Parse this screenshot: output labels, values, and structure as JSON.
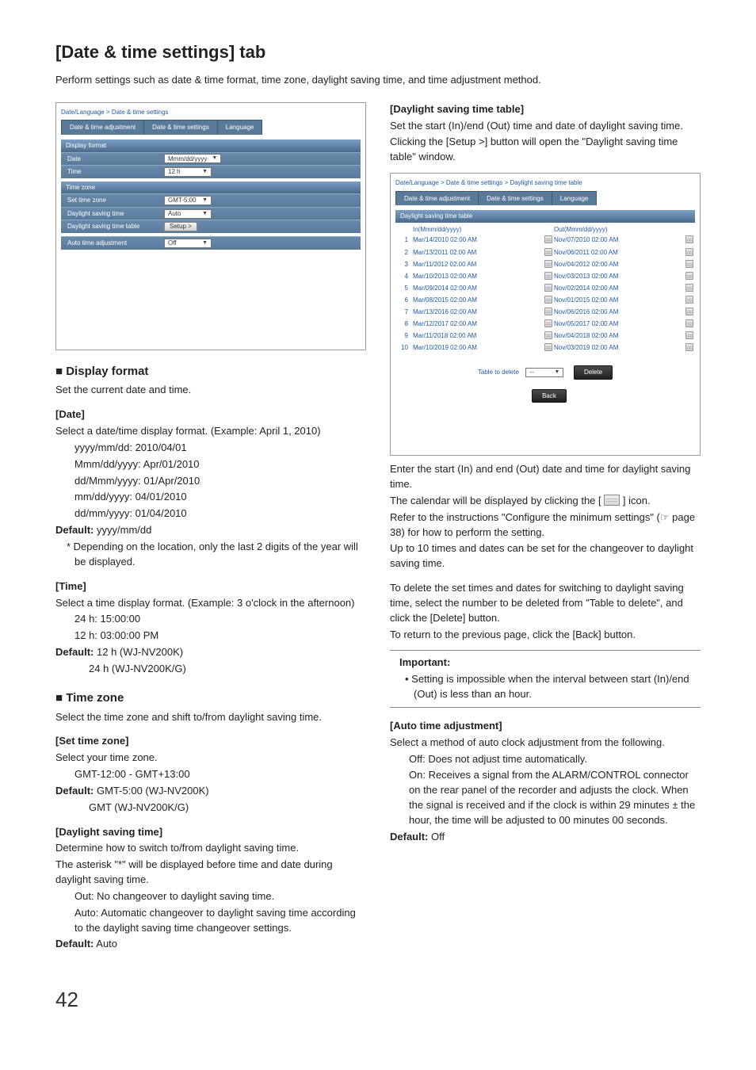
{
  "colors": {
    "accent": "#1e5aa8",
    "tab_bg": "#5a7a9a",
    "section_grad_top": "#7aa0c6",
    "section_grad_bottom": "#4a6a8a",
    "btn_dark_top": "#4a4a4a",
    "btn_dark_bottom": "#1f1f1f"
  },
  "page": {
    "title": "[Date & time settings] tab",
    "intro": "Perform settings such as date & time format, time zone, daylight saving time, and time adjustment method.",
    "number": "42"
  },
  "shot1": {
    "crumb": "Date/Language > Date & time settings",
    "tabs": [
      "Date & time adjustment",
      "Date & time settings",
      "Language"
    ],
    "sections": {
      "display_format": {
        "title": "Display format",
        "rows": [
          {
            "label": "Date",
            "value": "Mmm/dd/yyyy",
            "type": "dropdown"
          },
          {
            "label": "Time",
            "value": "12 h",
            "type": "dropdown"
          }
        ]
      },
      "time_zone": {
        "title": "Time zone",
        "rows": [
          {
            "label": "Set time zone",
            "value": "GMT-5:00",
            "type": "dropdown"
          },
          {
            "label": "Daylight saving time",
            "value": "Auto",
            "type": "dropdown"
          },
          {
            "label": "Daylight saving time table",
            "value": "Setup >",
            "type": "button"
          }
        ]
      },
      "auto": {
        "title": "",
        "rows": [
          {
            "label": "Auto time adjustment",
            "value": "Off",
            "type": "dropdown"
          }
        ]
      }
    }
  },
  "left": {
    "display_format": {
      "heading": "■ Display format",
      "sub": "Set the current date and time.",
      "date": {
        "h": "[Date]",
        "p": "Select a date/time display format. (Example: April 1, 2010)",
        "opts": [
          "yyyy/mm/dd: 2010/04/01",
          "Mmm/dd/yyyy: Apr/01/2010",
          "dd/Mmm/yyyy: 01/Apr/2010",
          "mm/dd/yyyy: 04/01/2010",
          "dd/mm/yyyy: 01/04/2010"
        ],
        "def_label": "Default:",
        "def": " yyyy/mm/dd",
        "note": "* Depending on the location, only the last 2 digits of the year will be displayed."
      },
      "time": {
        "h": "[Time]",
        "p": "Select a time display format. (Example: 3 o'clock in the afternoon)",
        "opts": [
          "24 h: 15:00:00",
          "12 h: 03:00:00 PM"
        ],
        "def_label": "Default:",
        "def1": " 12 h (WJ-NV200K)",
        "def2": "24 h (WJ-NV200K/G)"
      }
    },
    "timezone": {
      "heading": "■ Time zone",
      "sub": "Select the time zone and shift to/from daylight saving time.",
      "set": {
        "h": "[Set time zone]",
        "p": "Select your time zone.",
        "range": "GMT-12:00 - GMT+13:00",
        "def_label": "Default:",
        "def1": " GMT-5:00 (WJ-NV200K)",
        "def2": "GMT (WJ-NV200K/G)"
      },
      "dst": {
        "h": "[Daylight saving time]",
        "p1": "Determine how to switch to/from daylight saving time.",
        "p2": "The asterisk \"*\" will be displayed before time and date during daylight saving time.",
        "opts": [
          "Out: No changeover to daylight saving time.",
          "Auto: Automatic changeover to daylight saving time according to the daylight saving time changeover settings."
        ],
        "def_label": "Default:",
        "def": " Auto"
      }
    }
  },
  "right": {
    "dst_table": {
      "h": "[Daylight saving time table]",
      "p1": "Set the start (In)/end (Out) time and date of daylight saving time.",
      "p2": "Clicking the [Setup >] button will open the \"Daylight saving time table\" window."
    },
    "shot2": {
      "crumb": "Date/Language > Date & time settings > Daylight saving time table",
      "tabs": [
        "Date & time adjustment",
        "Date & time settings",
        "Language"
      ],
      "section": "Daylight saving time table",
      "head_in": "In(Mmm/dd/yyyy)",
      "head_out": "Out(Mmm/dd/yyyy)",
      "rows": [
        {
          "n": "1",
          "in": "Mar/14/2010 02:00 AM",
          "out": "Nov/07/2010 02:00 AM"
        },
        {
          "n": "2",
          "in": "Mar/13/2011 02:00 AM",
          "out": "Nov/06/2011 02:00 AM"
        },
        {
          "n": "3",
          "in": "Mar/11/2012 02:00 AM",
          "out": "Nov/04/2012 02:00 AM"
        },
        {
          "n": "4",
          "in": "Mar/10/2013 02:00 AM",
          "out": "Nov/03/2013 02:00 AM"
        },
        {
          "n": "5",
          "in": "Mar/09/2014 02:00 AM",
          "out": "Nov/02/2014 02:00 AM"
        },
        {
          "n": "6",
          "in": "Mar/08/2015 02:00 AM",
          "out": "Nov/01/2015 02:00 AM"
        },
        {
          "n": "7",
          "in": "Mar/13/2016 02:00 AM",
          "out": "Nov/06/2016 02:00 AM"
        },
        {
          "n": "8",
          "in": "Mar/12/2017 02:00 AM",
          "out": "Nov/05/2017 02:00 AM"
        },
        {
          "n": "9",
          "in": "Mar/11/2018 02:00 AM",
          "out": "Nov/04/2018 02:00 AM"
        },
        {
          "n": "10",
          "in": "Mar/10/2019 02:00 AM",
          "out": "Nov/03/2019 02:00 AM"
        }
      ],
      "table_to_delete": "Table to delete",
      "sel": "--",
      "delete_btn": "Delete",
      "back_btn": "Back"
    },
    "after": {
      "p1": "Enter the start (In) and end (Out) date and time for daylight saving time.",
      "p2a": "The calendar will be displayed by clicking the [",
      "p2b": "] icon.",
      "p3": "Refer to the instructions \"Configure the minimum settings\" (☞ page 38) for how to perform the setting.",
      "p4": "Up to 10 times and dates can be set for the changeover to daylight saving time.",
      "p5": "To delete the set times and dates for switching to daylight saving time, select the number to be deleted from \"Table to delete\", and click the [Delete] button.",
      "p6": "To return to the previous page, click the [Back] button."
    },
    "important": {
      "title": "Important:",
      "item": "• Setting is impossible when the interval between start (In)/end (Out) is less than an hour."
    },
    "auto": {
      "h": "[Auto time adjustment]",
      "p": "Select a method of auto clock adjustment from the following.",
      "off": "Off: Does not adjust time automatically.",
      "on": "On: Receives a signal from the ALARM/CONTROL connector on the rear panel of the recorder and adjusts the clock. When the signal is received and if the clock is within 29 minutes ± the hour, the time will be adjusted to 00 minutes 00 seconds.",
      "def_label": "Default:",
      "def": " Off"
    }
  }
}
